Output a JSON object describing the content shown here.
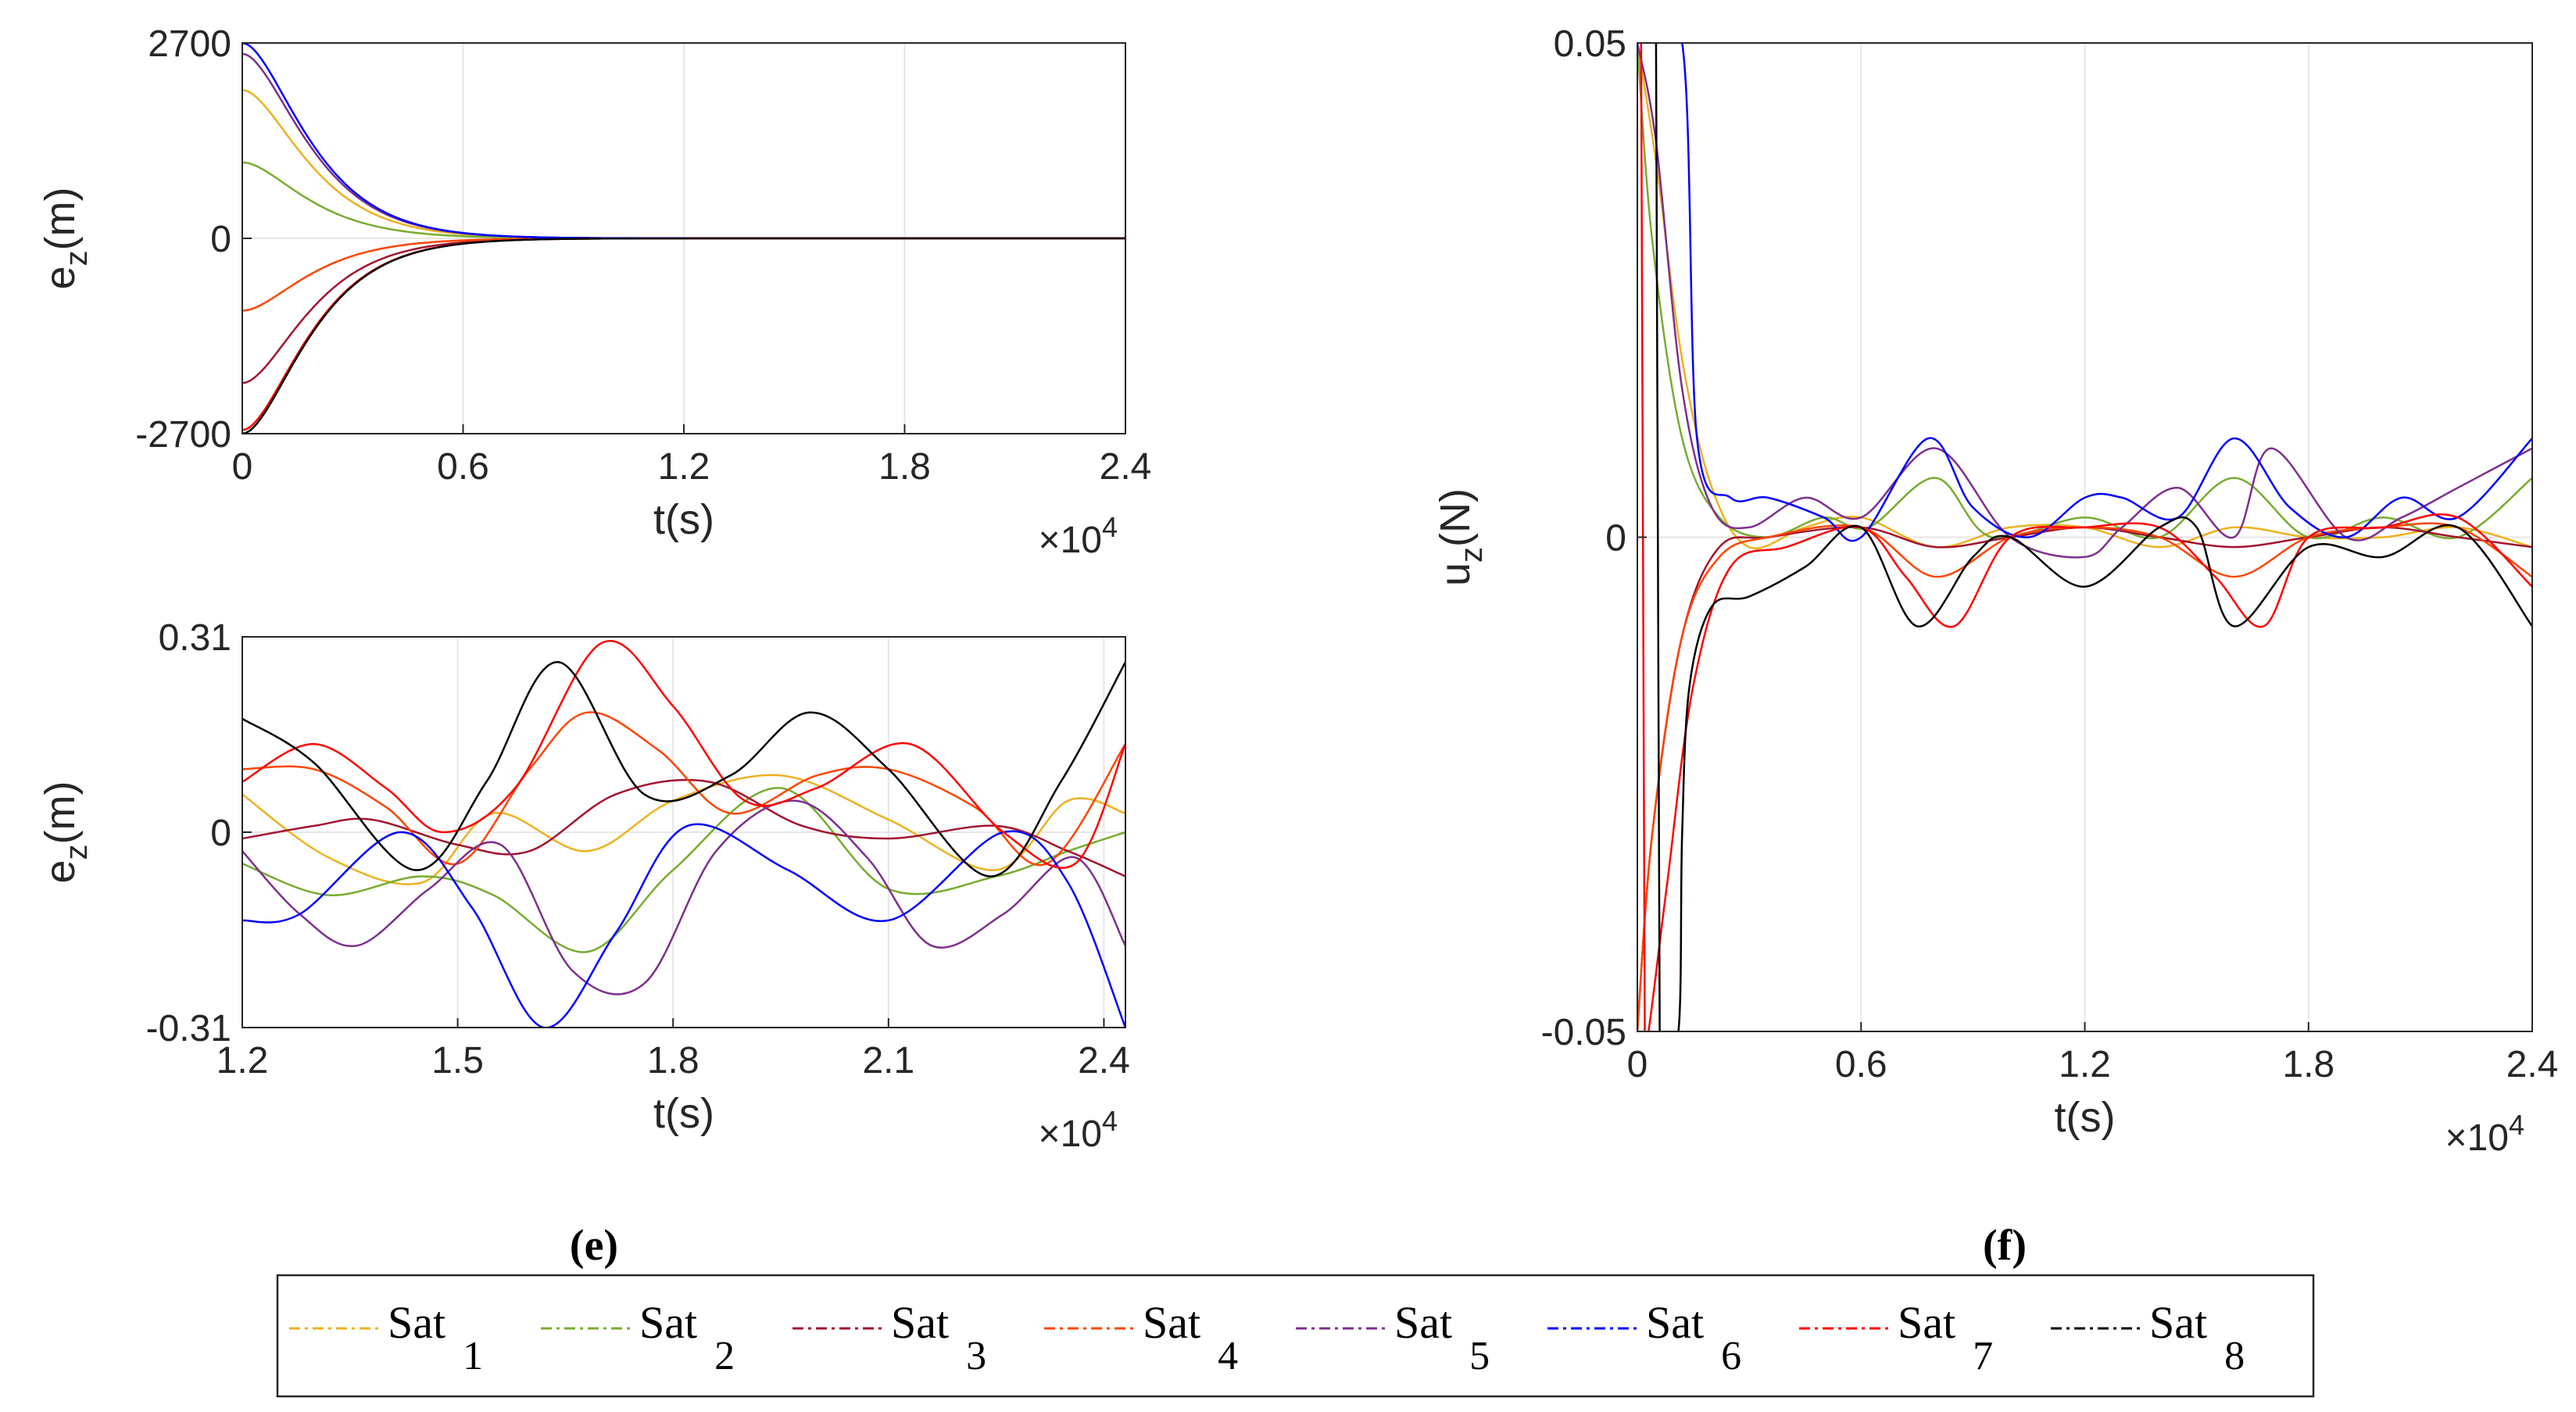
{
  "chart_data": [
    {
      "type": "line",
      "panel": "top-left",
      "title": "",
      "xlabel": "t(s)",
      "ylabel_main": "e",
      "ylabel_sub": "z",
      "ylabel_unit": "(m)",
      "x_multiplier_text": "×10",
      "x_multiplier_exp": "4",
      "xlim": [
        0,
        2.4
      ],
      "ylim": [
        -2700,
        2700
      ],
      "xticks": [
        0,
        0.6,
        1.2,
        1.8,
        2.4
      ],
      "xtick_labels": [
        "0",
        "0.6",
        "1.2",
        "1.8",
        "2.4"
      ],
      "yticks": [
        -2700,
        0,
        2700
      ],
      "ytick_labels": [
        "-2700",
        "0",
        "2700"
      ],
      "grid": true,
      "decay_tau": 0.11,
      "series": [
        {
          "name": "Sat 1",
          "initial": 2050
        },
        {
          "name": "Sat 2",
          "initial": 1050
        },
        {
          "name": "Sat 3",
          "initial": -2000
        },
        {
          "name": "Sat 4",
          "initial": -1000
        },
        {
          "name": "Sat 5",
          "initial": 2550
        },
        {
          "name": "Sat 6",
          "initial": 2700
        },
        {
          "name": "Sat 7",
          "initial": -2650
        },
        {
          "name": "Sat 8",
          "initial": -2700
        }
      ]
    },
    {
      "type": "line",
      "panel": "bottom-left",
      "title": "",
      "xlabel": "t(s)",
      "ylabel_main": "e",
      "ylabel_sub": "z",
      "ylabel_unit": "(m)",
      "x_multiplier_text": "×10",
      "x_multiplier_exp": "4",
      "xlim": [
        1.2,
        2.43
      ],
      "ylim": [
        -0.31,
        0.31
      ],
      "xticks": [
        1.2,
        1.5,
        1.8,
        2.1,
        2.4
      ],
      "xtick_labels": [
        "1.2",
        "1.5",
        "1.8",
        "2.1",
        "2.4"
      ],
      "yticks": [
        -0.31,
        0,
        0.31
      ],
      "ytick_labels": [
        "-0.31",
        "0",
        "0.31"
      ],
      "grid": true,
      "series": [
        {
          "name": "Sat 1",
          "x": [
            1.2,
            1.32,
            1.45,
            1.55,
            1.68,
            1.8,
            1.95,
            2.1,
            2.25,
            2.35,
            2.43
          ],
          "y": [
            0.06,
            -0.04,
            -0.08,
            0.03,
            -0.03,
            0.05,
            0.09,
            0.02,
            -0.06,
            0.05,
            0.03
          ]
        },
        {
          "name": "Sat 2",
          "x": [
            1.2,
            1.32,
            1.45,
            1.55,
            1.68,
            1.8,
            1.95,
            2.1,
            2.25,
            2.35,
            2.43
          ],
          "y": [
            -0.05,
            -0.1,
            -0.07,
            -0.1,
            -0.19,
            -0.06,
            0.07,
            -0.09,
            -0.07,
            -0.03,
            0.0
          ]
        },
        {
          "name": "Sat 3",
          "x": [
            1.2,
            1.3,
            1.38,
            1.5,
            1.6,
            1.72,
            1.85,
            1.98,
            2.1,
            2.25,
            2.35,
            2.43
          ],
          "y": [
            -0.01,
            0.01,
            0.02,
            -0.02,
            -0.03,
            0.06,
            0.08,
            0.01,
            -0.01,
            0.01,
            -0.03,
            -0.07
          ]
        },
        {
          "name": "Sat 4",
          "x": [
            1.2,
            1.3,
            1.4,
            1.5,
            1.6,
            1.68,
            1.78,
            1.88,
            2.0,
            2.1,
            2.22,
            2.32,
            2.43
          ],
          "y": [
            0.1,
            0.1,
            0.04,
            -0.05,
            0.1,
            0.19,
            0.13,
            0.03,
            0.09,
            0.1,
            0.04,
            -0.05,
            0.14
          ]
        },
        {
          "name": "Sat 5",
          "x": [
            1.2,
            1.28,
            1.36,
            1.46,
            1.56,
            1.66,
            1.76,
            1.86,
            1.97,
            2.07,
            2.16,
            2.26,
            2.36,
            2.43
          ],
          "y": [
            -0.03,
            -0.13,
            -0.18,
            -0.09,
            -0.02,
            -0.22,
            -0.24,
            -0.03,
            0.05,
            -0.04,
            -0.18,
            -0.13,
            -0.04,
            -0.18
          ]
        },
        {
          "name": "Sat 6",
          "x": [
            1.2,
            1.28,
            1.42,
            1.52,
            1.62,
            1.72,
            1.82,
            1.96,
            2.1,
            2.26,
            2.35,
            2.43
          ],
          "y": [
            -0.14,
            -0.13,
            0.0,
            -0.12,
            -0.31,
            -0.16,
            0.01,
            -0.06,
            -0.14,
            0.0,
            -0.08,
            -0.31
          ]
        },
        {
          "name": "Sat 7",
          "x": [
            1.2,
            1.3,
            1.4,
            1.48,
            1.58,
            1.7,
            1.8,
            1.9,
            2.0,
            2.13,
            2.26,
            2.36,
            2.43
          ],
          "y": [
            0.08,
            0.14,
            0.07,
            0.0,
            0.07,
            0.3,
            0.2,
            0.05,
            0.07,
            0.14,
            0.0,
            -0.05,
            0.14
          ]
        },
        {
          "name": "Sat 8",
          "x": [
            1.2,
            1.3,
            1.44,
            1.54,
            1.64,
            1.76,
            1.88,
            1.99,
            2.1,
            2.24,
            2.34,
            2.43
          ],
          "y": [
            0.18,
            0.11,
            -0.06,
            0.08,
            0.27,
            0.06,
            0.09,
            0.19,
            0.1,
            -0.07,
            0.08,
            0.27
          ]
        }
      ]
    },
    {
      "type": "line",
      "panel": "right",
      "title": "",
      "xlabel": "t(s)",
      "ylabel_main": "u",
      "ylabel_sub": "z",
      "ylabel_unit": "(N)",
      "x_multiplier_text": "×10",
      "x_multiplier_exp": "4",
      "xlim": [
        0,
        2.4
      ],
      "ylim": [
        -0.05,
        0.05
      ],
      "xticks": [
        0,
        0.6,
        1.2,
        1.8,
        2.4
      ],
      "xtick_labels": [
        "0",
        "0.6",
        "1.2",
        "1.8",
        "2.4"
      ],
      "yticks": [
        -0.05,
        0,
        0.05
      ],
      "ytick_labels": [
        "-0.05",
        "0",
        "0.05"
      ],
      "grid": true,
      "series": [
        {
          "name": "Sat 1",
          "x": [
            0,
            0.05,
            0.12,
            0.2,
            0.3,
            0.45,
            0.6,
            0.8,
            1.0,
            1.2,
            1.4,
            1.6,
            1.8,
            2.0,
            2.2,
            2.4
          ],
          "y": [
            0.05,
            0.038,
            0.018,
            0.005,
            -0.001,
            0.001,
            0.002,
            -0.001,
            0.001,
            0.001,
            -0.001,
            0.001,
            0.0,
            0.0,
            0.001,
            -0.001
          ]
        },
        {
          "name": "Sat 2",
          "x": [
            0,
            0.04,
            0.12,
            0.22,
            0.35,
            0.5,
            0.62,
            0.8,
            0.95,
            1.2,
            1.4,
            1.6,
            1.8,
            2.0,
            2.2,
            2.4
          ],
          "y": [
            0.05,
            0.03,
            0.01,
            0.002,
            0.0,
            0.002,
            0.001,
            0.006,
            0.0,
            0.002,
            0.0,
            0.006,
            0.0,
            0.002,
            0.0,
            0.006
          ]
        },
        {
          "name": "Sat 3",
          "x": [
            0,
            0.04,
            0.12,
            0.22,
            0.35,
            0.6,
            0.8,
            1.0,
            1.2,
            1.4,
            1.6,
            1.8,
            2.0,
            2.2,
            2.4
          ],
          "y": [
            -0.05,
            -0.03,
            -0.01,
            -0.001,
            0.0,
            0.001,
            -0.001,
            0.0,
            0.001,
            0.0,
            -0.001,
            0.0,
            0.001,
            0.0,
            -0.001
          ]
        },
        {
          "name": "Sat 4",
          "x": [
            0,
            0.04,
            0.12,
            0.22,
            0.35,
            0.6,
            0.8,
            1.0,
            1.2,
            1.4,
            1.6,
            1.8,
            2.0,
            2.2,
            2.4
          ],
          "y": [
            -0.05,
            -0.03,
            -0.01,
            -0.002,
            0.0,
            0.001,
            -0.004,
            0.0,
            0.001,
            0.0,
            -0.004,
            0.0,
            0.001,
            0.001,
            -0.004
          ]
        },
        {
          "name": "Sat 5",
          "x": [
            0,
            0.05,
            0.12,
            0.2,
            0.3,
            0.45,
            0.6,
            0.8,
            1.0,
            1.2,
            1.3,
            1.45,
            1.6,
            1.7,
            1.9,
            2.05,
            2.2,
            2.4
          ],
          "y": [
            0.05,
            0.04,
            0.015,
            0.003,
            0.001,
            0.004,
            0.002,
            0.009,
            0.0,
            -0.002,
            0.001,
            0.005,
            0.0,
            0.009,
            0.0,
            0.002,
            0.005,
            0.009
          ]
        },
        {
          "name": "Sat 6",
          "x": [
            0,
            0.12,
            0.16,
            0.25,
            0.35,
            0.5,
            0.6,
            0.78,
            0.9,
            1.05,
            1.2,
            1.3,
            1.45,
            1.6,
            1.75,
            1.9,
            2.05,
            2.2,
            2.4
          ],
          "y": [
            0.05,
            0.05,
            0.01,
            0.004,
            0.004,
            0.002,
            0.0,
            0.01,
            0.003,
            0.0,
            0.004,
            0.004,
            0.002,
            0.01,
            0.003,
            0.0,
            0.004,
            0.002,
            0.01
          ]
        },
        {
          "name": "Sat 7",
          "x": [
            0,
            0.01,
            0.02,
            0.03,
            0.08,
            0.15,
            0.25,
            0.4,
            0.6,
            0.72,
            0.85,
            1.0,
            1.2,
            1.4,
            1.55,
            1.68,
            1.8,
            2.0,
            2.2,
            2.4
          ],
          "y": [
            0.05,
            0.05,
            -0.05,
            -0.05,
            -0.035,
            -0.015,
            -0.003,
            -0.001,
            0.001,
            -0.004,
            -0.009,
            0.0,
            0.001,
            0.001,
            -0.004,
            -0.009,
            0.0,
            0.001,
            0.002,
            -0.005
          ]
        },
        {
          "name": "Sat 8",
          "x": [
            0,
            0.05,
            0.06,
            0.11,
            0.12,
            0.14,
            0.2,
            0.3,
            0.45,
            0.6,
            0.75,
            0.9,
            1.0,
            1.2,
            1.4,
            1.5,
            1.6,
            1.8,
            2.0,
            2.2,
            2.4
          ],
          "y": [
            0.05,
            0.05,
            -0.05,
            -0.05,
            -0.03,
            -0.015,
            -0.007,
            -0.006,
            -0.003,
            0.001,
            -0.009,
            -0.002,
            0.0,
            -0.005,
            0.001,
            0.001,
            -0.009,
            -0.001,
            -0.002,
            0.001,
            -0.009
          ]
        }
      ]
    }
  ],
  "legend": {
    "colors": [
      "#EDB120",
      "#77AC30",
      "#A2142F",
      "#FF4500",
      "#7E2F8E",
      "#0000FF",
      "#FF0000",
      "#000000"
    ],
    "items": [
      {
        "main": "Sat",
        "sub": "1"
      },
      {
        "main": "Sat",
        "sub": "2"
      },
      {
        "main": "Sat",
        "sub": "3"
      },
      {
        "main": "Sat",
        "sub": "4"
      },
      {
        "main": "Sat",
        "sub": "5"
      },
      {
        "main": "Sat",
        "sub": "6"
      },
      {
        "main": "Sat",
        "sub": "7"
      },
      {
        "main": "Sat",
        "sub": "8"
      }
    ]
  },
  "subfigure_labels": {
    "left": "(e)",
    "right": "(f)"
  }
}
